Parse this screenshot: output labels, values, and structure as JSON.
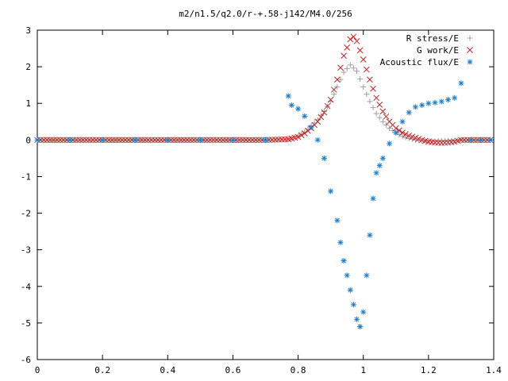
{
  "chart_data": {
    "type": "scatter",
    "title": "m2/n1.5/q2.0/r-+.58-j142/M4.0/256",
    "xlabel": "",
    "ylabel": "",
    "xlim": [
      0,
      1.4
    ],
    "ylim": [
      -6,
      3
    ],
    "x_ticks": [
      "0",
      "0.2",
      "0.4",
      "0.6",
      "0.8",
      "1",
      "1.2",
      "1.4"
    ],
    "y_ticks": [
      "3",
      "2",
      "1",
      "0",
      "-1",
      "-2",
      "-3",
      "-4",
      "-5",
      "-6"
    ],
    "grid": false,
    "legend_position": "top-right",
    "colors": {
      "r_stress": "#a0a0a0",
      "g_work": "#cc2222",
      "acoustic_flux": "#1a7fd6"
    },
    "series": [
      {
        "name": "R stress/E",
        "marker": "+",
        "points": [
          [
            0.0,
            0.0
          ],
          [
            0.1,
            0.0
          ],
          [
            0.2,
            0.0
          ],
          [
            0.3,
            0.0
          ],
          [
            0.4,
            0.0
          ],
          [
            0.5,
            0.0
          ],
          [
            0.6,
            0.0
          ],
          [
            0.7,
            0.0
          ],
          [
            0.77,
            0.02
          ],
          [
            0.8,
            0.1
          ],
          [
            0.82,
            0.22
          ],
          [
            0.84,
            0.38
          ],
          [
            0.86,
            0.55
          ],
          [
            0.88,
            0.78
          ],
          [
            0.9,
            1.05
          ],
          [
            0.92,
            1.45
          ],
          [
            0.94,
            1.85
          ],
          [
            0.96,
            2.05
          ],
          [
            0.98,
            1.88
          ],
          [
            1.0,
            1.45
          ],
          [
            1.02,
            1.05
          ],
          [
            1.04,
            0.72
          ],
          [
            1.06,
            0.5
          ],
          [
            1.08,
            0.32
          ],
          [
            1.1,
            0.2
          ],
          [
            1.12,
            0.1
          ],
          [
            1.14,
            0.04
          ],
          [
            1.16,
            0.0
          ],
          [
            1.18,
            -0.02
          ],
          [
            1.2,
            -0.03
          ],
          [
            1.22,
            -0.03
          ],
          [
            1.24,
            -0.02
          ],
          [
            1.26,
            -0.02
          ],
          [
            1.28,
            -0.02
          ],
          [
            1.3,
            0.0
          ],
          [
            1.33,
            0.0
          ],
          [
            1.36,
            0.0
          ],
          [
            1.39,
            0.0
          ]
        ]
      },
      {
        "name": "G work/E",
        "marker": "x",
        "points": [
          [
            0.0,
            0.0
          ],
          [
            0.1,
            0.0
          ],
          [
            0.2,
            0.0
          ],
          [
            0.3,
            0.0
          ],
          [
            0.4,
            0.0
          ],
          [
            0.5,
            0.0
          ],
          [
            0.6,
            0.0
          ],
          [
            0.7,
            0.0
          ],
          [
            0.77,
            0.02
          ],
          [
            0.8,
            0.08
          ],
          [
            0.82,
            0.18
          ],
          [
            0.84,
            0.32
          ],
          [
            0.86,
            0.5
          ],
          [
            0.88,
            0.75
          ],
          [
            0.9,
            1.1
          ],
          [
            0.92,
            1.65
          ],
          [
            0.94,
            2.3
          ],
          [
            0.96,
            2.75
          ],
          [
            0.97,
            2.82
          ],
          [
            0.98,
            2.7
          ],
          [
            1.0,
            2.2
          ],
          [
            1.02,
            1.65
          ],
          [
            1.04,
            1.15
          ],
          [
            1.06,
            0.78
          ],
          [
            1.08,
            0.5
          ],
          [
            1.1,
            0.32
          ],
          [
            1.12,
            0.2
          ],
          [
            1.14,
            0.12
          ],
          [
            1.16,
            0.06
          ],
          [
            1.18,
            0.0
          ],
          [
            1.2,
            -0.05
          ],
          [
            1.22,
            -0.07
          ],
          [
            1.24,
            -0.08
          ],
          [
            1.26,
            -0.07
          ],
          [
            1.28,
            -0.05
          ],
          [
            1.3,
            0.0
          ],
          [
            1.33,
            0.0
          ],
          [
            1.36,
            0.0
          ],
          [
            1.39,
            0.0
          ]
        ]
      },
      {
        "name": "Acoustic flux/E",
        "marker": "*",
        "points": [
          [
            0.0,
            0.0
          ],
          [
            0.1,
            0.0
          ],
          [
            0.2,
            0.0
          ],
          [
            0.3,
            0.0
          ],
          [
            0.4,
            0.0
          ],
          [
            0.5,
            0.0
          ],
          [
            0.6,
            0.0
          ],
          [
            0.7,
            0.0
          ],
          [
            0.77,
            1.2
          ],
          [
            0.78,
            0.95
          ],
          [
            0.8,
            0.85
          ],
          [
            0.82,
            0.65
          ],
          [
            0.84,
            0.35
          ],
          [
            0.86,
            0.0
          ],
          [
            0.88,
            -0.5
          ],
          [
            0.9,
            -1.4
          ],
          [
            0.92,
            -2.2
          ],
          [
            0.93,
            -2.8
          ],
          [
            0.94,
            -3.3
          ],
          [
            0.95,
            -3.7
          ],
          [
            0.96,
            -4.1
          ],
          [
            0.97,
            -4.5
          ],
          [
            0.98,
            -4.9
          ],
          [
            0.99,
            -5.1
          ],
          [
            1.0,
            -4.7
          ],
          [
            1.01,
            -3.7
          ],
          [
            1.02,
            -2.6
          ],
          [
            1.03,
            -1.6
          ],
          [
            1.04,
            -0.9
          ],
          [
            1.05,
            -0.7
          ],
          [
            1.06,
            -0.5
          ],
          [
            1.08,
            -0.1
          ],
          [
            1.1,
            0.2
          ],
          [
            1.12,
            0.5
          ],
          [
            1.14,
            0.75
          ],
          [
            1.16,
            0.9
          ],
          [
            1.18,
            0.95
          ],
          [
            1.2,
            1.0
          ],
          [
            1.22,
            1.02
          ],
          [
            1.24,
            1.05
          ],
          [
            1.26,
            1.1
          ],
          [
            1.28,
            1.15
          ],
          [
            1.3,
            1.55
          ],
          [
            1.33,
            0.0
          ],
          [
            1.36,
            0.0
          ],
          [
            1.39,
            0.0
          ]
        ]
      }
    ]
  }
}
